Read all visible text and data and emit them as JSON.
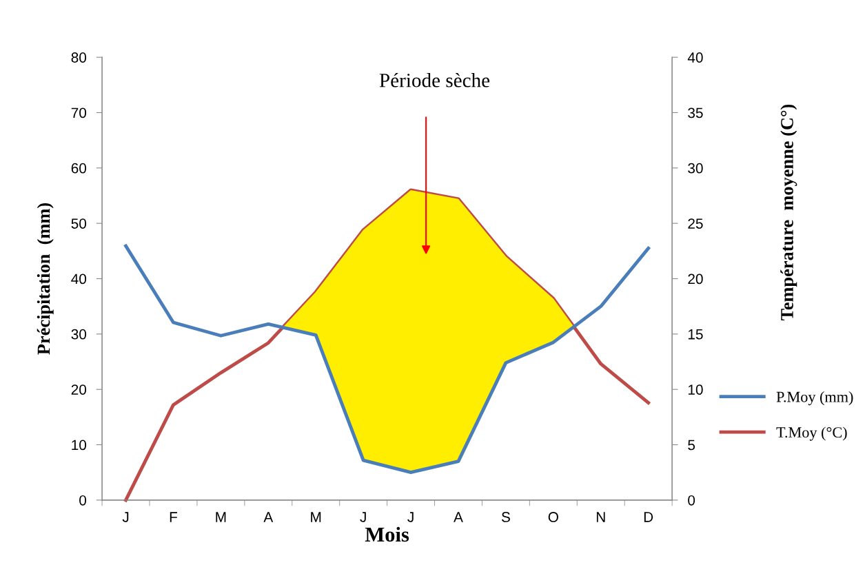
{
  "chart_data": {
    "type": "line",
    "xlabel": "Mois",
    "ylabel": "Précipitation  (mm)",
    "y2label": "Température  moyenne (C°)",
    "categories": [
      "J",
      "F",
      "M",
      "A",
      "M",
      "J",
      "J",
      "A",
      "S",
      "O",
      "N",
      "D"
    ],
    "series": [
      {
        "name": "P.Moy (mm)",
        "color": "#4a7ebb",
        "values": [
          45.9,
          32.1,
          29.7,
          31.8,
          29.8,
          7.2,
          5.0,
          7.0,
          24.8,
          28.5,
          35.0,
          45.5
        ]
      },
      {
        "name": "T.Moy (°C)",
        "color": "#be4b48",
        "axis": "y2",
        "values": [
          0,
          8.6,
          11.5,
          14.2,
          18.8,
          24.4,
          28.0,
          27.2,
          22.0,
          18.2,
          12.3,
          8.8
        ]
      }
    ],
    "ylim": [
      0,
      80
    ],
    "yticks": [
      0,
      10,
      20,
      30,
      40,
      50,
      60,
      70,
      80
    ],
    "y2lim": [
      0,
      40
    ],
    "y2ticks": [
      0,
      5,
      10,
      15,
      20,
      25,
      30,
      35,
      40
    ],
    "annotations": [
      "Période sèche"
    ],
    "legend": "right",
    "grid": false,
    "marker": "none",
    "line_style": "solid"
  }
}
